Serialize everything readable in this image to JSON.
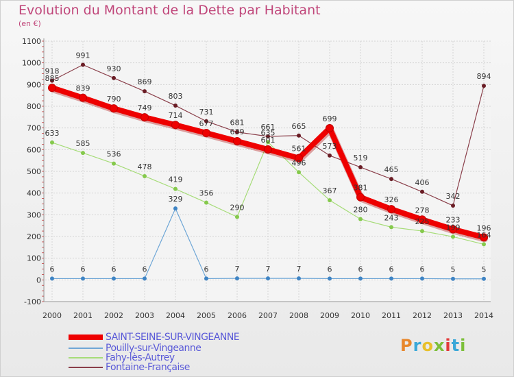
{
  "title": "Evolution du Montant de la Dette par Habitant",
  "unit": "(en €)",
  "logo": {
    "text": "Proxiti",
    "colors": [
      "#e8872b",
      "#3aa8d8",
      "#e8c02b",
      "#7cbf3a",
      "#e23a3a",
      "#3aa8d8",
      "#7cbf3a"
    ]
  },
  "chart_data": {
    "type": "line",
    "x": [
      "2000",
      "2001",
      "2002",
      "2003",
      "2004",
      "2005",
      "2006",
      "2007",
      "2008",
      "2009",
      "2010",
      "2011",
      "2012",
      "2013",
      "2014"
    ],
    "ylim": [
      -100,
      1100
    ],
    "yticks": [
      -100,
      0,
      100,
      200,
      300,
      400,
      500,
      600,
      700,
      800,
      900,
      1000,
      1100
    ],
    "grid": true,
    "legend_position": "bottom-left",
    "series": [
      {
        "name": "SAINT-SEINE-SUR-VINGEANNE",
        "color": "#ee0000",
        "marker": "#ee0000",
        "width": 8,
        "values": [
          885,
          839,
          790,
          749,
          714,
          677,
          639,
          601,
          561,
          699,
          381,
          326,
          278,
          233,
          196
        ],
        "labels": [
          "885",
          "839",
          "790",
          "749",
          "714",
          "677",
          "639",
          "601",
          "561",
          "699",
          "381",
          "326",
          "278",
          "233",
          "196"
        ]
      },
      {
        "name": "Pouilly-sur-Vingeanne",
        "color": "#6ea6d6",
        "marker": "#3f84c4",
        "width": 1.2,
        "values": [
          6,
          6,
          6,
          6,
          329,
          6,
          7,
          7,
          7,
          6,
          6,
          6,
          6,
          5,
          5
        ],
        "labels": [
          "6",
          "6",
          "6",
          "6",
          "329",
          "6",
          "7",
          "7",
          "7",
          "6",
          "6",
          "6",
          "6",
          "5",
          "5"
        ]
      },
      {
        "name": "Fahy-lès-Autrey",
        "color": "#a6dc78",
        "marker": "#85c94c",
        "width": 1.2,
        "values": [
          633,
          585,
          536,
          478,
          419,
          356,
          290,
          635,
          496,
          367,
          280,
          243,
          225,
          199,
          164
        ],
        "labels": [
          "633",
          "585",
          "536",
          "478",
          "419",
          "356",
          "290",
          "635",
          "496",
          "367",
          "280",
          "243",
          "225",
          "199",
          "164"
        ]
      },
      {
        "name": "Fontaine-Française",
        "color": "#8a3f4a",
        "marker": "#6a1d25",
        "width": 1.2,
        "values": [
          918,
          991,
          930,
          869,
          803,
          731,
          681,
          661,
          665,
          573,
          519,
          465,
          406,
          342,
          894
        ],
        "labels": [
          "918",
          "991",
          "930",
          "869",
          "803",
          "731",
          "681",
          "661",
          "665",
          "573",
          "519",
          "465",
          "406",
          "342",
          "894"
        ]
      }
    ]
  }
}
